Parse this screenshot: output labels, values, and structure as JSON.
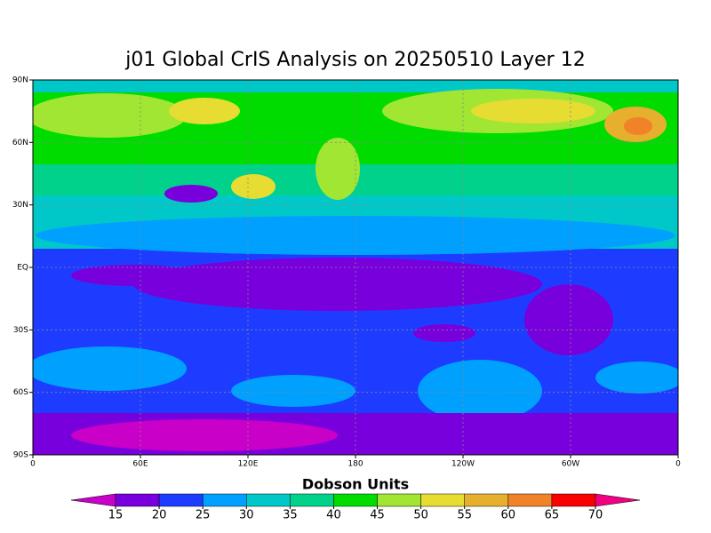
{
  "title": "j01 Global CrIS Analysis on 20250510 Layer 12",
  "map": {
    "lat_labels": [
      "90N",
      "60N",
      "30N",
      "EQ",
      "30S",
      "60S",
      "90S"
    ],
    "lon_labels": [
      "0",
      "60E",
      "120E",
      "180",
      "120W",
      "60W",
      "0"
    ]
  },
  "colorbar": {
    "label": "Dobson Units",
    "ticks": [
      15,
      20,
      25,
      30,
      35,
      40,
      45,
      50,
      55,
      60,
      65,
      70
    ],
    "colors": [
      "#c800c8",
      "#7800dc",
      "#1e3cff",
      "#00a0ff",
      "#00c8c8",
      "#00d28c",
      "#00dc00",
      "#a0e632",
      "#e6dc32",
      "#e6af2d",
      "#f08228",
      "#fa0000",
      "#f00082"
    ]
  }
}
